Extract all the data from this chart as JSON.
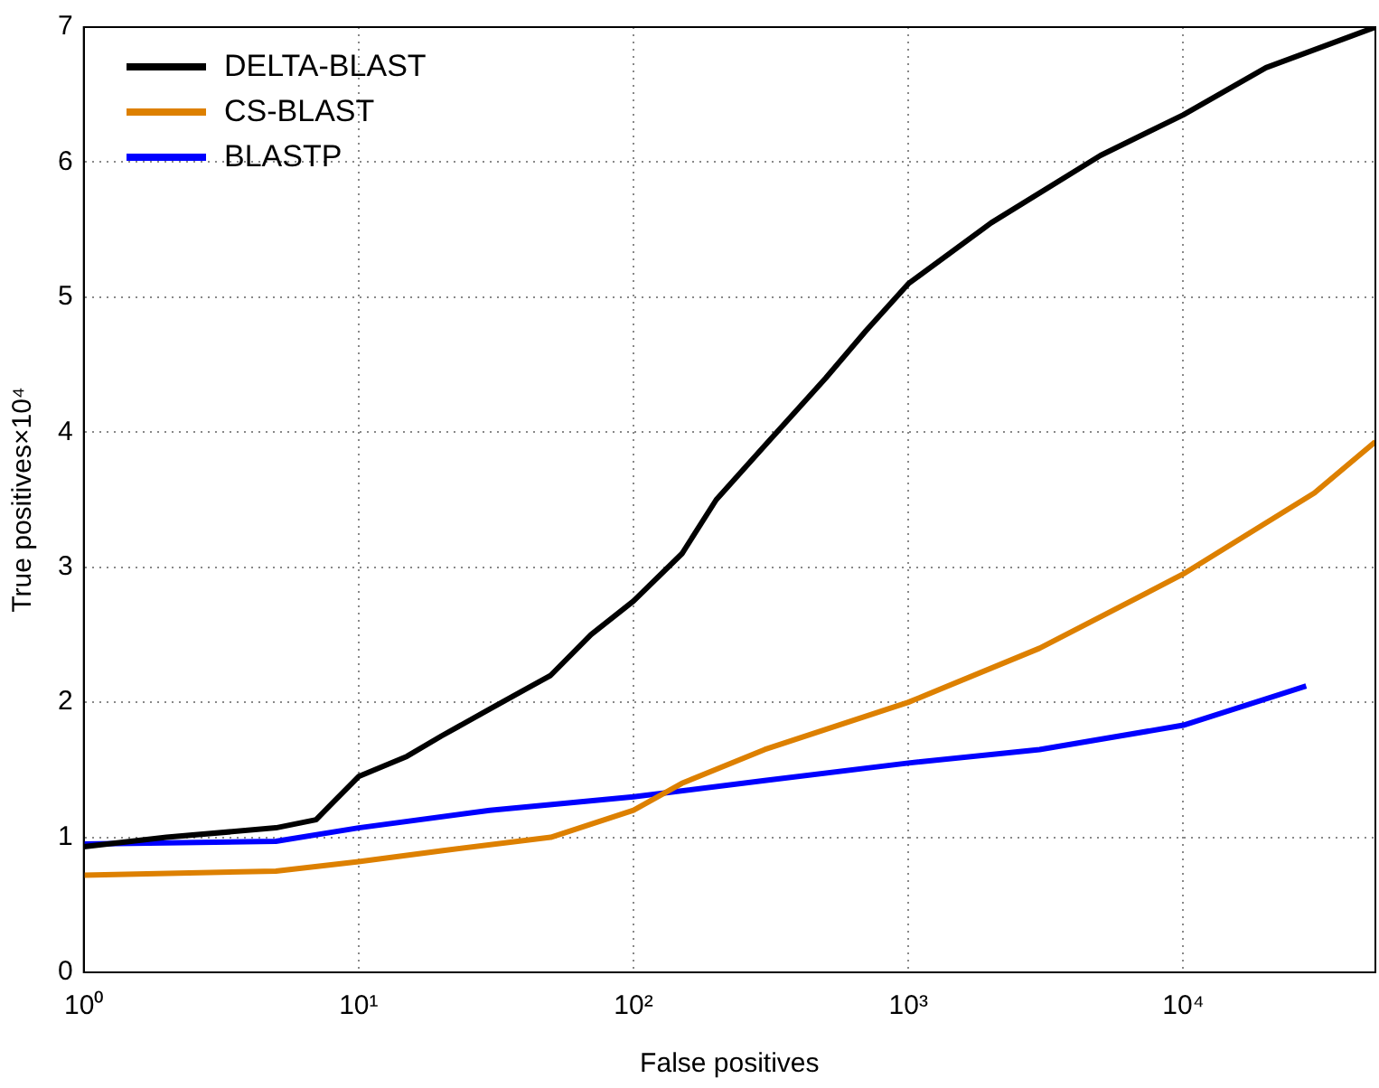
{
  "chart_data": {
    "type": "line",
    "xlabel": "False positives",
    "ylabel": "True positives×10⁴",
    "log": "x",
    "grid": true,
    "legend": "top left",
    "marker": "none",
    "line_style": "solid",
    "xlim": [
      1,
      50000
    ],
    "xticks": [
      {
        "value": 1,
        "label": "10⁰"
      },
      {
        "value": 10,
        "label": "10¹"
      },
      {
        "value": 100,
        "label": "10²"
      },
      {
        "value": 1000,
        "label": "10³"
      },
      {
        "value": 10000,
        "label": "10⁴"
      }
    ],
    "ylim": [
      0,
      7
    ],
    "yticks": [
      0,
      1,
      2,
      3,
      4,
      5,
      6,
      7
    ],
    "series": [
      {
        "name": "DELTA-BLAST",
        "color": "#000000",
        "x": [
          1,
          2,
          5,
          7,
          8,
          10,
          15,
          20,
          30,
          50,
          70,
          100,
          150,
          200,
          300,
          500,
          700,
          1000,
          2000,
          5000,
          10000,
          20000,
          50000
        ],
        "values": [
          0.93,
          1.0,
          1.07,
          1.13,
          1.25,
          1.45,
          1.6,
          1.75,
          1.95,
          2.2,
          2.5,
          2.75,
          3.1,
          3.5,
          3.9,
          4.4,
          4.75,
          5.1,
          5.55,
          6.05,
          6.35,
          6.7,
          7.0
        ]
      },
      {
        "name": "CS-BLAST",
        "color": "#dd8000",
        "x": [
          1,
          5,
          10,
          20,
          50,
          100,
          150,
          300,
          1000,
          3000,
          10000,
          30000,
          50000
        ],
        "values": [
          0.72,
          0.75,
          0.82,
          0.9,
          1.0,
          1.2,
          1.4,
          1.65,
          2.0,
          2.4,
          2.95,
          3.55,
          3.93
        ]
      },
      {
        "name": "BLASTP",
        "color": "#0000ff",
        "x": [
          1,
          5,
          10,
          30,
          100,
          300,
          1000,
          3000,
          10000,
          28000
        ],
        "values": [
          0.95,
          0.97,
          1.07,
          1.2,
          1.3,
          1.42,
          1.55,
          1.65,
          1.83,
          2.12
        ]
      }
    ]
  }
}
